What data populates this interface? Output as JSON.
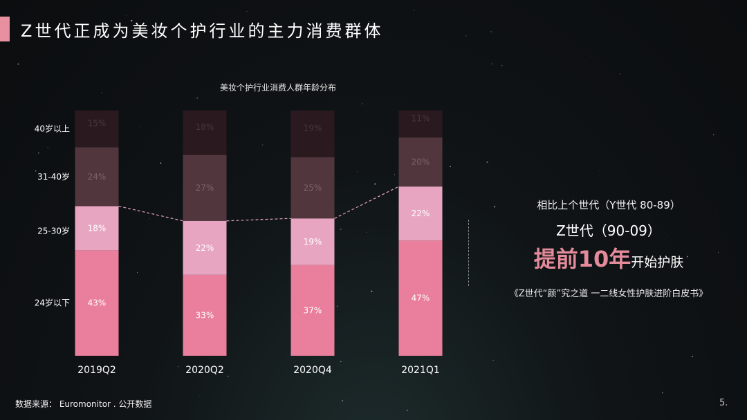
{
  "slide": {
    "title": "Z世代正成为美妆个护行业的主力消费群体",
    "source": "数据来源： Euromonitor . 公开数据",
    "page": "5."
  },
  "side": {
    "line1": "相比上个世代（Y世代 80-89）",
    "line2": "Z世代（90-09）",
    "highlight": "提前10年",
    "highlight_tail": "开始护肤",
    "citation": "《Z世代“颜”究之道 一二线女性护肤进阶白皮书》"
  },
  "colors": {
    "accent": "#e8909f",
    "seg_24_below": "#e97f9c",
    "seg_25_30": "#e8a5c2",
    "seg_31_40": "#51373d",
    "seg_40_above": "#2a1a1f"
  },
  "chart_data": {
    "type": "bar",
    "stacked": true,
    "title": "美妆个护行业消费人群年龄分布",
    "categories": [
      "2019Q2",
      "2020Q2",
      "2020Q4",
      "2021Q1"
    ],
    "series": [
      {
        "name": "24岁以下",
        "values": [
          43,
          33,
          37,
          47
        ],
        "color": "#e97f9c"
      },
      {
        "name": "25-30岁",
        "values": [
          18,
          22,
          19,
          22
        ],
        "color": "#e8a5c2"
      },
      {
        "name": "31-40岁",
        "values": [
          24,
          27,
          25,
          20
        ],
        "color": "#51373d"
      },
      {
        "name": "40岁以上",
        "values": [
          15,
          18,
          19,
          11
        ],
        "color": "#2a1a1f"
      }
    ],
    "ylim": [
      0,
      100
    ],
    "legend": "left",
    "data_label_suffix": "%",
    "connector_line": "dashed, top of 25-30岁 segment"
  }
}
